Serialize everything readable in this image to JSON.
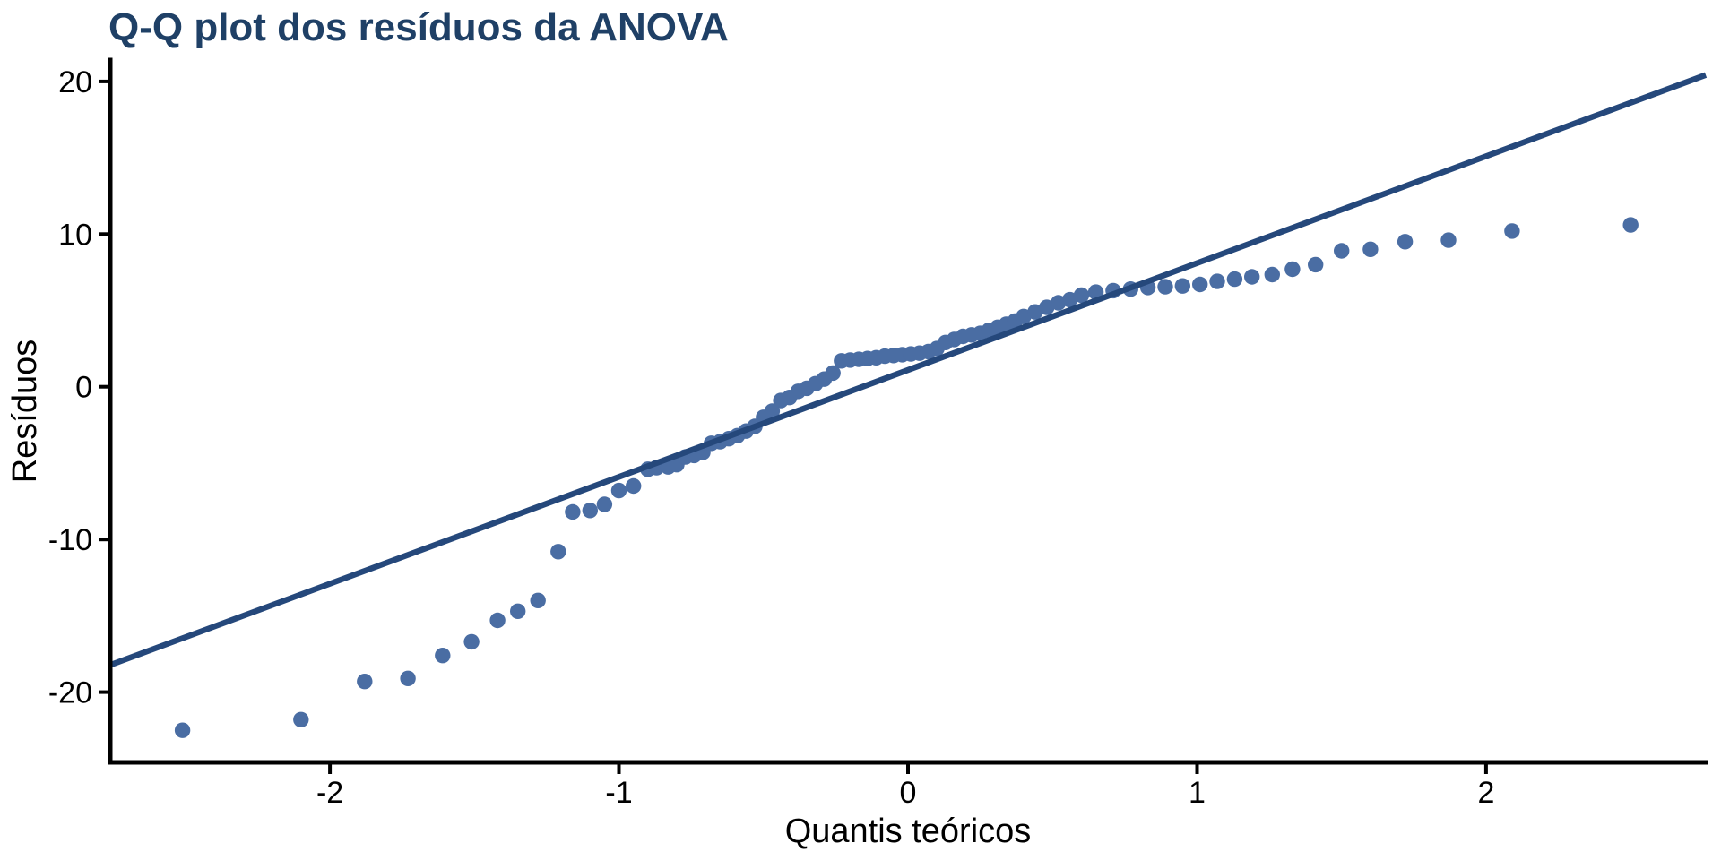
{
  "title": {
    "text": "Q-Q plot dos resíduos da ANOVA"
  },
  "chart_data": {
    "type": "scatter",
    "title": "Q-Q plot dos resíduos da ANOVA",
    "xlabel": "Quantis teóricos",
    "ylabel": "Resíduos",
    "xlim": [
      -2.76,
      2.76
    ],
    "ylim": [
      -24.6,
      21.4
    ],
    "x_ticks": [
      -2,
      -1,
      0,
      1,
      2
    ],
    "y_ticks": [
      -20,
      -10,
      0,
      10,
      20
    ],
    "grid": false,
    "legend": "none",
    "reference_line": {
      "slope": 7.0,
      "intercept": 1.1
    },
    "points": [
      [
        -2.51,
        -22.5
      ],
      [
        -2.1,
        -21.8
      ],
      [
        -1.88,
        -19.3
      ],
      [
        -1.73,
        -19.1
      ],
      [
        -1.61,
        -17.6
      ],
      [
        -1.51,
        -16.7
      ],
      [
        -1.42,
        -15.3
      ],
      [
        -1.35,
        -14.7
      ],
      [
        -1.28,
        -14.0
      ],
      [
        -1.21,
        -10.8
      ],
      [
        -1.16,
        -8.2
      ],
      [
        -1.1,
        -8.1
      ],
      [
        -1.05,
        -7.7
      ],
      [
        -1.0,
        -6.8
      ],
      [
        -0.95,
        -6.5
      ],
      [
        -0.9,
        -5.4
      ],
      [
        -0.87,
        -5.3
      ],
      [
        -0.83,
        -5.25
      ],
      [
        -0.8,
        -5.1
      ],
      [
        -0.77,
        -4.6
      ],
      [
        -0.74,
        -4.5
      ],
      [
        -0.71,
        -4.3
      ],
      [
        -0.68,
        -3.7
      ],
      [
        -0.65,
        -3.6
      ],
      [
        -0.62,
        -3.4
      ],
      [
        -0.59,
        -3.2
      ],
      [
        -0.56,
        -2.9
      ],
      [
        -0.53,
        -2.6
      ],
      [
        -0.5,
        -2.0
      ],
      [
        -0.47,
        -1.6
      ],
      [
        -0.44,
        -0.9
      ],
      [
        -0.41,
        -0.7
      ],
      [
        -0.38,
        -0.3
      ],
      [
        -0.35,
        -0.1
      ],
      [
        -0.32,
        0.2
      ],
      [
        -0.29,
        0.5
      ],
      [
        -0.26,
        0.9
      ],
      [
        -0.23,
        1.7
      ],
      [
        -0.2,
        1.75
      ],
      [
        -0.17,
        1.8
      ],
      [
        -0.14,
        1.85
      ],
      [
        -0.11,
        1.9
      ],
      [
        -0.08,
        2.0
      ],
      [
        -0.05,
        2.05
      ],
      [
        -0.02,
        2.1
      ],
      [
        0.01,
        2.15
      ],
      [
        0.04,
        2.2
      ],
      [
        0.07,
        2.3
      ],
      [
        0.1,
        2.5
      ],
      [
        0.13,
        2.9
      ],
      [
        0.16,
        3.1
      ],
      [
        0.19,
        3.3
      ],
      [
        0.22,
        3.4
      ],
      [
        0.25,
        3.5
      ],
      [
        0.28,
        3.7
      ],
      [
        0.31,
        3.9
      ],
      [
        0.34,
        4.1
      ],
      [
        0.37,
        4.3
      ],
      [
        0.4,
        4.6
      ],
      [
        0.44,
        4.9
      ],
      [
        0.48,
        5.2
      ],
      [
        0.52,
        5.5
      ],
      [
        0.56,
        5.7
      ],
      [
        0.6,
        6.0
      ],
      [
        0.65,
        6.2
      ],
      [
        0.71,
        6.3
      ],
      [
        0.77,
        6.4
      ],
      [
        0.83,
        6.5
      ],
      [
        0.89,
        6.55
      ],
      [
        0.95,
        6.6
      ],
      [
        1.01,
        6.7
      ],
      [
        1.07,
        6.9
      ],
      [
        1.13,
        7.05
      ],
      [
        1.19,
        7.2
      ],
      [
        1.26,
        7.35
      ],
      [
        1.33,
        7.7
      ],
      [
        1.41,
        8.0
      ],
      [
        1.5,
        8.9
      ],
      [
        1.6,
        9.0
      ],
      [
        1.72,
        9.5
      ],
      [
        1.87,
        9.6
      ],
      [
        2.09,
        10.2
      ],
      [
        2.5,
        10.6
      ]
    ],
    "colors": {
      "title": "#1f4066",
      "point": "#4a6da3",
      "line": "#25487b",
      "axis": "#000000",
      "tick_text": "#000000"
    }
  }
}
